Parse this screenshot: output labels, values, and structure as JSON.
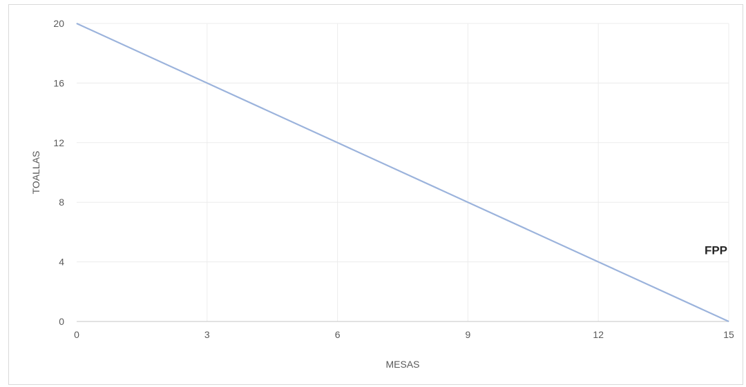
{
  "chart_data": {
    "type": "line",
    "title": "",
    "xlabel": "MESAS",
    "ylabel": "TOALLAS",
    "xlim": [
      0,
      15
    ],
    "ylim": [
      0,
      20
    ],
    "x_ticks": [
      0,
      3,
      6,
      9,
      12,
      15
    ],
    "y_ticks": [
      0,
      4,
      8,
      12,
      16,
      20
    ],
    "grid": true,
    "legend": "none",
    "series": [
      {
        "x": [
          0,
          3,
          6,
          9,
          12,
          15
        ],
        "y": [
          20,
          16,
          12,
          8,
          4,
          0
        ],
        "color": "#9bb3dc"
      }
    ],
    "annotations": [
      {
        "text": "FPP",
        "x": 15,
        "y": 4
      }
    ]
  }
}
